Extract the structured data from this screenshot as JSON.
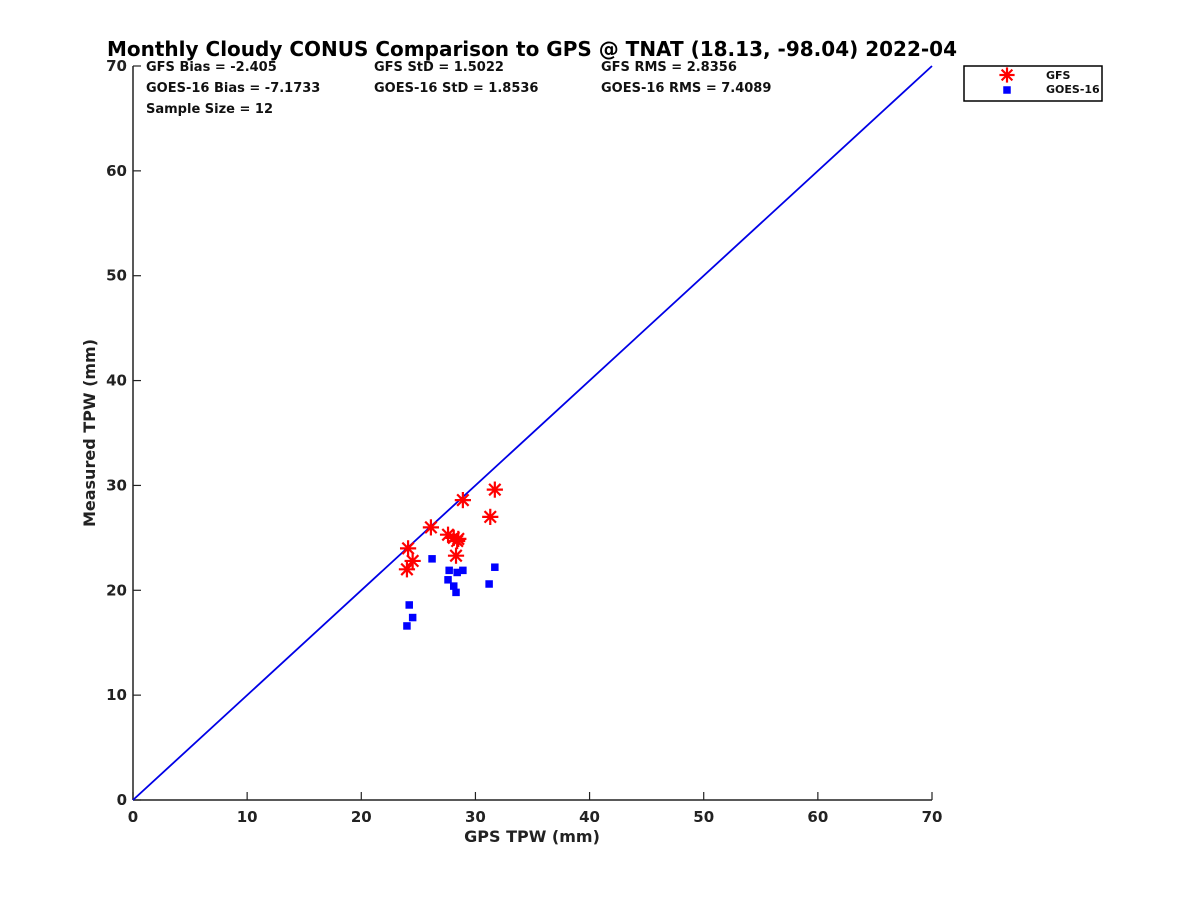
{
  "chart_data": {
    "type": "scatter",
    "title": "Monthly Cloudy CONUS Comparison to GPS @ TNAT (18.13, -98.04) 2022-04",
    "xlabel": "GPS TPW (mm)",
    "ylabel": "Measured TPW (mm)",
    "xlim": [
      0,
      70
    ],
    "ylim": [
      0,
      70
    ],
    "xticks": [
      0,
      10,
      20,
      30,
      40,
      50,
      60,
      70
    ],
    "yticks": [
      0,
      10,
      20,
      30,
      40,
      50,
      60,
      70
    ],
    "grid": false,
    "legend_position": "outside top-right",
    "stats": [
      [
        "GFS Bias = -2.405",
        "GFS StD = 1.5022",
        "GFS RMS = 2.8356"
      ],
      [
        "GOES-16 Bias = -7.1733",
        "GOES-16 StD = 1.8536",
        "GOES-16 RMS = 7.4089"
      ],
      [
        "Sample Size = 12"
      ]
    ],
    "reference_line": {
      "x": [
        0,
        70
      ],
      "y": [
        0,
        70
      ],
      "color": "#0000e6"
    },
    "series": [
      {
        "name": "GFS",
        "marker": "asterisk",
        "color": "#ff0000",
        "x": [
          24.1,
          24.0,
          24.5,
          26.1,
          27.6,
          28.1,
          28.4,
          28.3,
          28.9,
          31.3,
          31.7,
          28.5
        ],
        "y": [
          24.0,
          22.0,
          22.8,
          26.0,
          25.3,
          25.0,
          24.7,
          23.3,
          28.6,
          27.0,
          29.6,
          24.9
        ]
      },
      {
        "name": "GOES-16",
        "marker": "square",
        "color": "#0000ff",
        "x": [
          24.2,
          24.0,
          24.5,
          26.2,
          27.6,
          27.7,
          28.1,
          28.3,
          28.9,
          31.2,
          31.7,
          28.4
        ],
        "y": [
          18.6,
          16.6,
          17.4,
          23.0,
          21.0,
          21.9,
          20.4,
          19.8,
          21.9,
          20.6,
          22.2,
          21.7
        ]
      }
    ]
  }
}
